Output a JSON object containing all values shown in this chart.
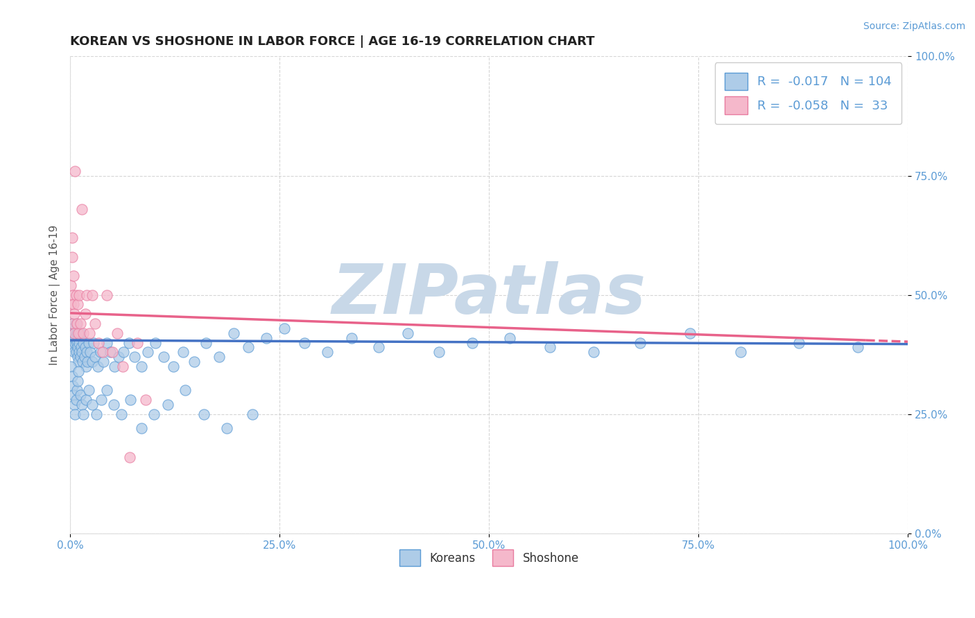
{
  "title": "KOREAN VS SHOSHONE IN LABOR FORCE | AGE 16-19 CORRELATION CHART",
  "source_text": "Source: ZipAtlas.com",
  "ylabel": "In Labor Force | Age 16-19",
  "xlim": [
    0.0,
    1.0
  ],
  "ylim": [
    0.0,
    1.0
  ],
  "xticks": [
    0.0,
    0.25,
    0.5,
    0.75,
    1.0
  ],
  "yticks": [
    0.0,
    0.25,
    0.5,
    0.75,
    1.0
  ],
  "xticklabels": [
    "0.0%",
    "25.0%",
    "50.0%",
    "75.0%",
    "100.0%"
  ],
  "yticklabels": [
    "0.0%",
    "25.0%",
    "50.0%",
    "75.0%",
    "100.0%"
  ],
  "korean_color": "#aecce8",
  "shoshone_color": "#f5b8cb",
  "korean_edge_color": "#5b9bd5",
  "shoshone_edge_color": "#e87ba0",
  "korean_line_color": "#4472c4",
  "shoshone_line_color": "#e8628a",
  "korean_R": -0.017,
  "korean_N": 104,
  "shoshone_R": -0.058,
  "shoshone_N": 33,
  "background_color": "#ffffff",
  "grid_color": "#cccccc",
  "watermark": "ZIPatlas",
  "watermark_color": "#c8d8e8",
  "legend_label_korean": "Koreans",
  "legend_label_shoshone": "Shoshone",
  "tick_color": "#5b9bd5",
  "title_fontsize": 13,
  "axis_label_fontsize": 11,
  "tick_fontsize": 11,
  "legend_fontsize": 13,
  "source_fontsize": 10,
  "korean_line_intercept": 0.405,
  "korean_line_slope": -0.008,
  "shoshone_line_intercept": 0.462,
  "shoshone_line_slope": -0.06,
  "korean_x": [
    0.001,
    0.002,
    0.002,
    0.003,
    0.003,
    0.004,
    0.004,
    0.005,
    0.005,
    0.006,
    0.006,
    0.007,
    0.007,
    0.008,
    0.008,
    0.009,
    0.009,
    0.01,
    0.01,
    0.011,
    0.011,
    0.012,
    0.012,
    0.013,
    0.014,
    0.015,
    0.016,
    0.017,
    0.018,
    0.019,
    0.02,
    0.021,
    0.022,
    0.024,
    0.026,
    0.028,
    0.03,
    0.033,
    0.036,
    0.04,
    0.044,
    0.048,
    0.053,
    0.058,
    0.064,
    0.07,
    0.077,
    0.085,
    0.093,
    0.102,
    0.112,
    0.123,
    0.135,
    0.148,
    0.162,
    0.178,
    0.195,
    0.213,
    0.234,
    0.256,
    0.28,
    0.307,
    0.336,
    0.368,
    0.403,
    0.44,
    0.48,
    0.525,
    0.573,
    0.625,
    0.68,
    0.74,
    0.8,
    0.87,
    0.94,
    0.001,
    0.002,
    0.003,
    0.004,
    0.005,
    0.006,
    0.007,
    0.008,
    0.009,
    0.01,
    0.012,
    0.014,
    0.016,
    0.019,
    0.022,
    0.026,
    0.031,
    0.037,
    0.044,
    0.052,
    0.061,
    0.072,
    0.085,
    0.1,
    0.117,
    0.137,
    0.16,
    0.187,
    0.218
  ],
  "korean_y": [
    0.42,
    0.41,
    0.44,
    0.4,
    0.43,
    0.39,
    0.41,
    0.38,
    0.42,
    0.4,
    0.41,
    0.38,
    0.44,
    0.4,
    0.42,
    0.37,
    0.39,
    0.36,
    0.41,
    0.38,
    0.4,
    0.37,
    0.42,
    0.39,
    0.38,
    0.36,
    0.4,
    0.37,
    0.39,
    0.35,
    0.38,
    0.36,
    0.4,
    0.38,
    0.36,
    0.4,
    0.37,
    0.35,
    0.38,
    0.36,
    0.4,
    0.38,
    0.35,
    0.37,
    0.38,
    0.4,
    0.37,
    0.35,
    0.38,
    0.4,
    0.37,
    0.35,
    0.38,
    0.36,
    0.4,
    0.37,
    0.42,
    0.39,
    0.41,
    0.43,
    0.4,
    0.38,
    0.41,
    0.39,
    0.42,
    0.38,
    0.4,
    0.41,
    0.39,
    0.38,
    0.4,
    0.42,
    0.38,
    0.4,
    0.39,
    0.35,
    0.33,
    0.31,
    0.29,
    0.27,
    0.25,
    0.28,
    0.3,
    0.32,
    0.34,
    0.29,
    0.27,
    0.25,
    0.28,
    0.3,
    0.27,
    0.25,
    0.28,
    0.3,
    0.27,
    0.25,
    0.28,
    0.22,
    0.25,
    0.27,
    0.3,
    0.25,
    0.22,
    0.25
  ],
  "shoshone_x": [
    0.001,
    0.001,
    0.002,
    0.002,
    0.003,
    0.003,
    0.004,
    0.004,
    0.005,
    0.005,
    0.006,
    0.007,
    0.008,
    0.009,
    0.01,
    0.011,
    0.012,
    0.014,
    0.016,
    0.018,
    0.02,
    0.023,
    0.026,
    0.03,
    0.034,
    0.039,
    0.044,
    0.05,
    0.056,
    0.063,
    0.071,
    0.08,
    0.09
  ],
  "shoshone_y": [
    0.52,
    0.48,
    0.58,
    0.62,
    0.5,
    0.44,
    0.48,
    0.54,
    0.42,
    0.46,
    0.76,
    0.5,
    0.44,
    0.48,
    0.42,
    0.5,
    0.44,
    0.68,
    0.42,
    0.46,
    0.5,
    0.42,
    0.5,
    0.44,
    0.4,
    0.38,
    0.5,
    0.38,
    0.42,
    0.35,
    0.16,
    0.4,
    0.28
  ]
}
